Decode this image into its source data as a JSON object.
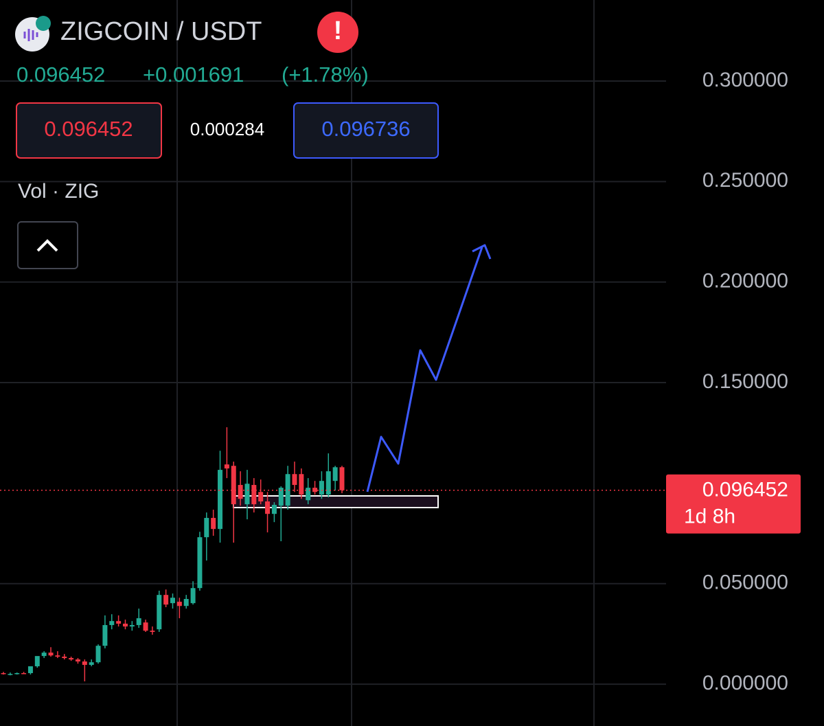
{
  "header": {
    "title": "ZIGCOIN / USDT",
    "price": 0.096452,
    "change": "+0.001691",
    "change_pct": "(+1.78%)"
  },
  "order": {
    "bid": 0.096452,
    "spread": 0.000284,
    "ask": 0.096736
  },
  "volume_label": "Vol · ZIG",
  "chart_data": {
    "type": "candlestick",
    "open": [
      0.0055,
      0.0051,
      0.0051,
      0.0055,
      0.0055,
      0.0089,
      0.014,
      0.0157,
      0.0143,
      0.0137,
      0.013,
      0.0123,
      0.0113,
      0.0096,
      0.0109,
      0.0191,
      0.0294,
      0.0314,
      0.0301,
      0.0287,
      0.0294,
      0.0307,
      0.0266,
      0.0273,
      0.0444,
      0.0403,
      0.041,
      0.0389,
      0.0403,
      0.0478,
      0.0731,
      0.0827,
      0.0772,
      0.1093,
      0.1086,
      0.0991,
      0.0895,
      0.0991,
      0.0956,
      0.0909,
      0.0847,
      0.0888,
      0.0888,
      0.1045,
      0.1045,
      0.0915,
      0.0977,
      0.0943,
      0.0943,
      0.1011,
      0.1079
    ],
    "high": [
      0.0061,
      0.0058,
      0.0058,
      0.0061,
      0.0075,
      0.0137,
      0.0164,
      0.0184,
      0.0164,
      0.015,
      0.0137,
      0.013,
      0.0123,
      0.0123,
      0.0198,
      0.0342,
      0.0348,
      0.0342,
      0.0321,
      0.0314,
      0.0376,
      0.0321,
      0.0287,
      0.0465,
      0.0471,
      0.0451,
      0.043,
      0.0444,
      0.0512,
      0.0758,
      0.0854,
      0.0868,
      0.1161,
      0.1278,
      0.1107,
      0.1059,
      0.1066,
      0.1025,
      0.1018,
      0.0956,
      0.0905,
      0.0984,
      0.1086,
      0.1107,
      0.1073,
      0.1025,
      0.1011,
      0.1059,
      0.1148,
      0.1086,
      0.1086
    ],
    "low": [
      0.0048,
      0.0044,
      0.0048,
      0.0051,
      0.0048,
      0.0082,
      0.013,
      0.0137,
      0.013,
      0.0123,
      0.0116,
      0.0102,
      0.0014,
      0.0089,
      0.0102,
      0.0178,
      0.0273,
      0.0287,
      0.0273,
      0.0266,
      0.028,
      0.026,
      0.0246,
      0.026,
      0.0383,
      0.0376,
      0.0328,
      0.0376,
      0.0396,
      0.0465,
      0.0615,
      0.0738,
      0.0704,
      0.1025,
      0.0704,
      0.0888,
      0.082,
      0.0854,
      0.0895,
      0.0755,
      0.0806,
      0.0711,
      0.0868,
      0.0956,
      0.0922,
      0.0895,
      0.0943,
      0.0922,
      0.0929,
      0.0963,
      0.095
    ],
    "close": [
      0.0051,
      0.0051,
      0.0055,
      0.0051,
      0.0089,
      0.014,
      0.0157,
      0.0143,
      0.0137,
      0.013,
      0.0123,
      0.0113,
      0.0096,
      0.0109,
      0.0191,
      0.0294,
      0.0314,
      0.0301,
      0.0287,
      0.0294,
      0.0328,
      0.0266,
      0.026,
      0.0444,
      0.0396,
      0.043,
      0.0389,
      0.0424,
      0.0478,
      0.0731,
      0.0827,
      0.0772,
      0.1066,
      0.1073,
      0.0895,
      0.0922,
      0.0997,
      0.0895,
      0.0909,
      0.0847,
      0.0892,
      0.0977,
      0.1045,
      0.0991,
      0.0943,
      0.0977,
      0.0956,
      0.1011,
      0.1059,
      0.1079,
      0.096452
    ],
    "up_color": "#22ab94",
    "down_color": "#f23645",
    "ylim": [
      -0.0208,
      0.3403
    ],
    "yticks": [
      {
        "value": 0.3,
        "label": "0.300000"
      },
      {
        "value": 0.25,
        "label": "0.250000"
      },
      {
        "value": 0.2,
        "label": "0.200000"
      },
      {
        "value": 0.15,
        "label": "0.150000"
      },
      {
        "value": 0.05,
        "label": "0.050000"
      },
      {
        "value": 0,
        "label": "0.000000"
      }
    ],
    "grid": true,
    "last_price": 0.096452,
    "countdown": "1d 8h"
  }
}
